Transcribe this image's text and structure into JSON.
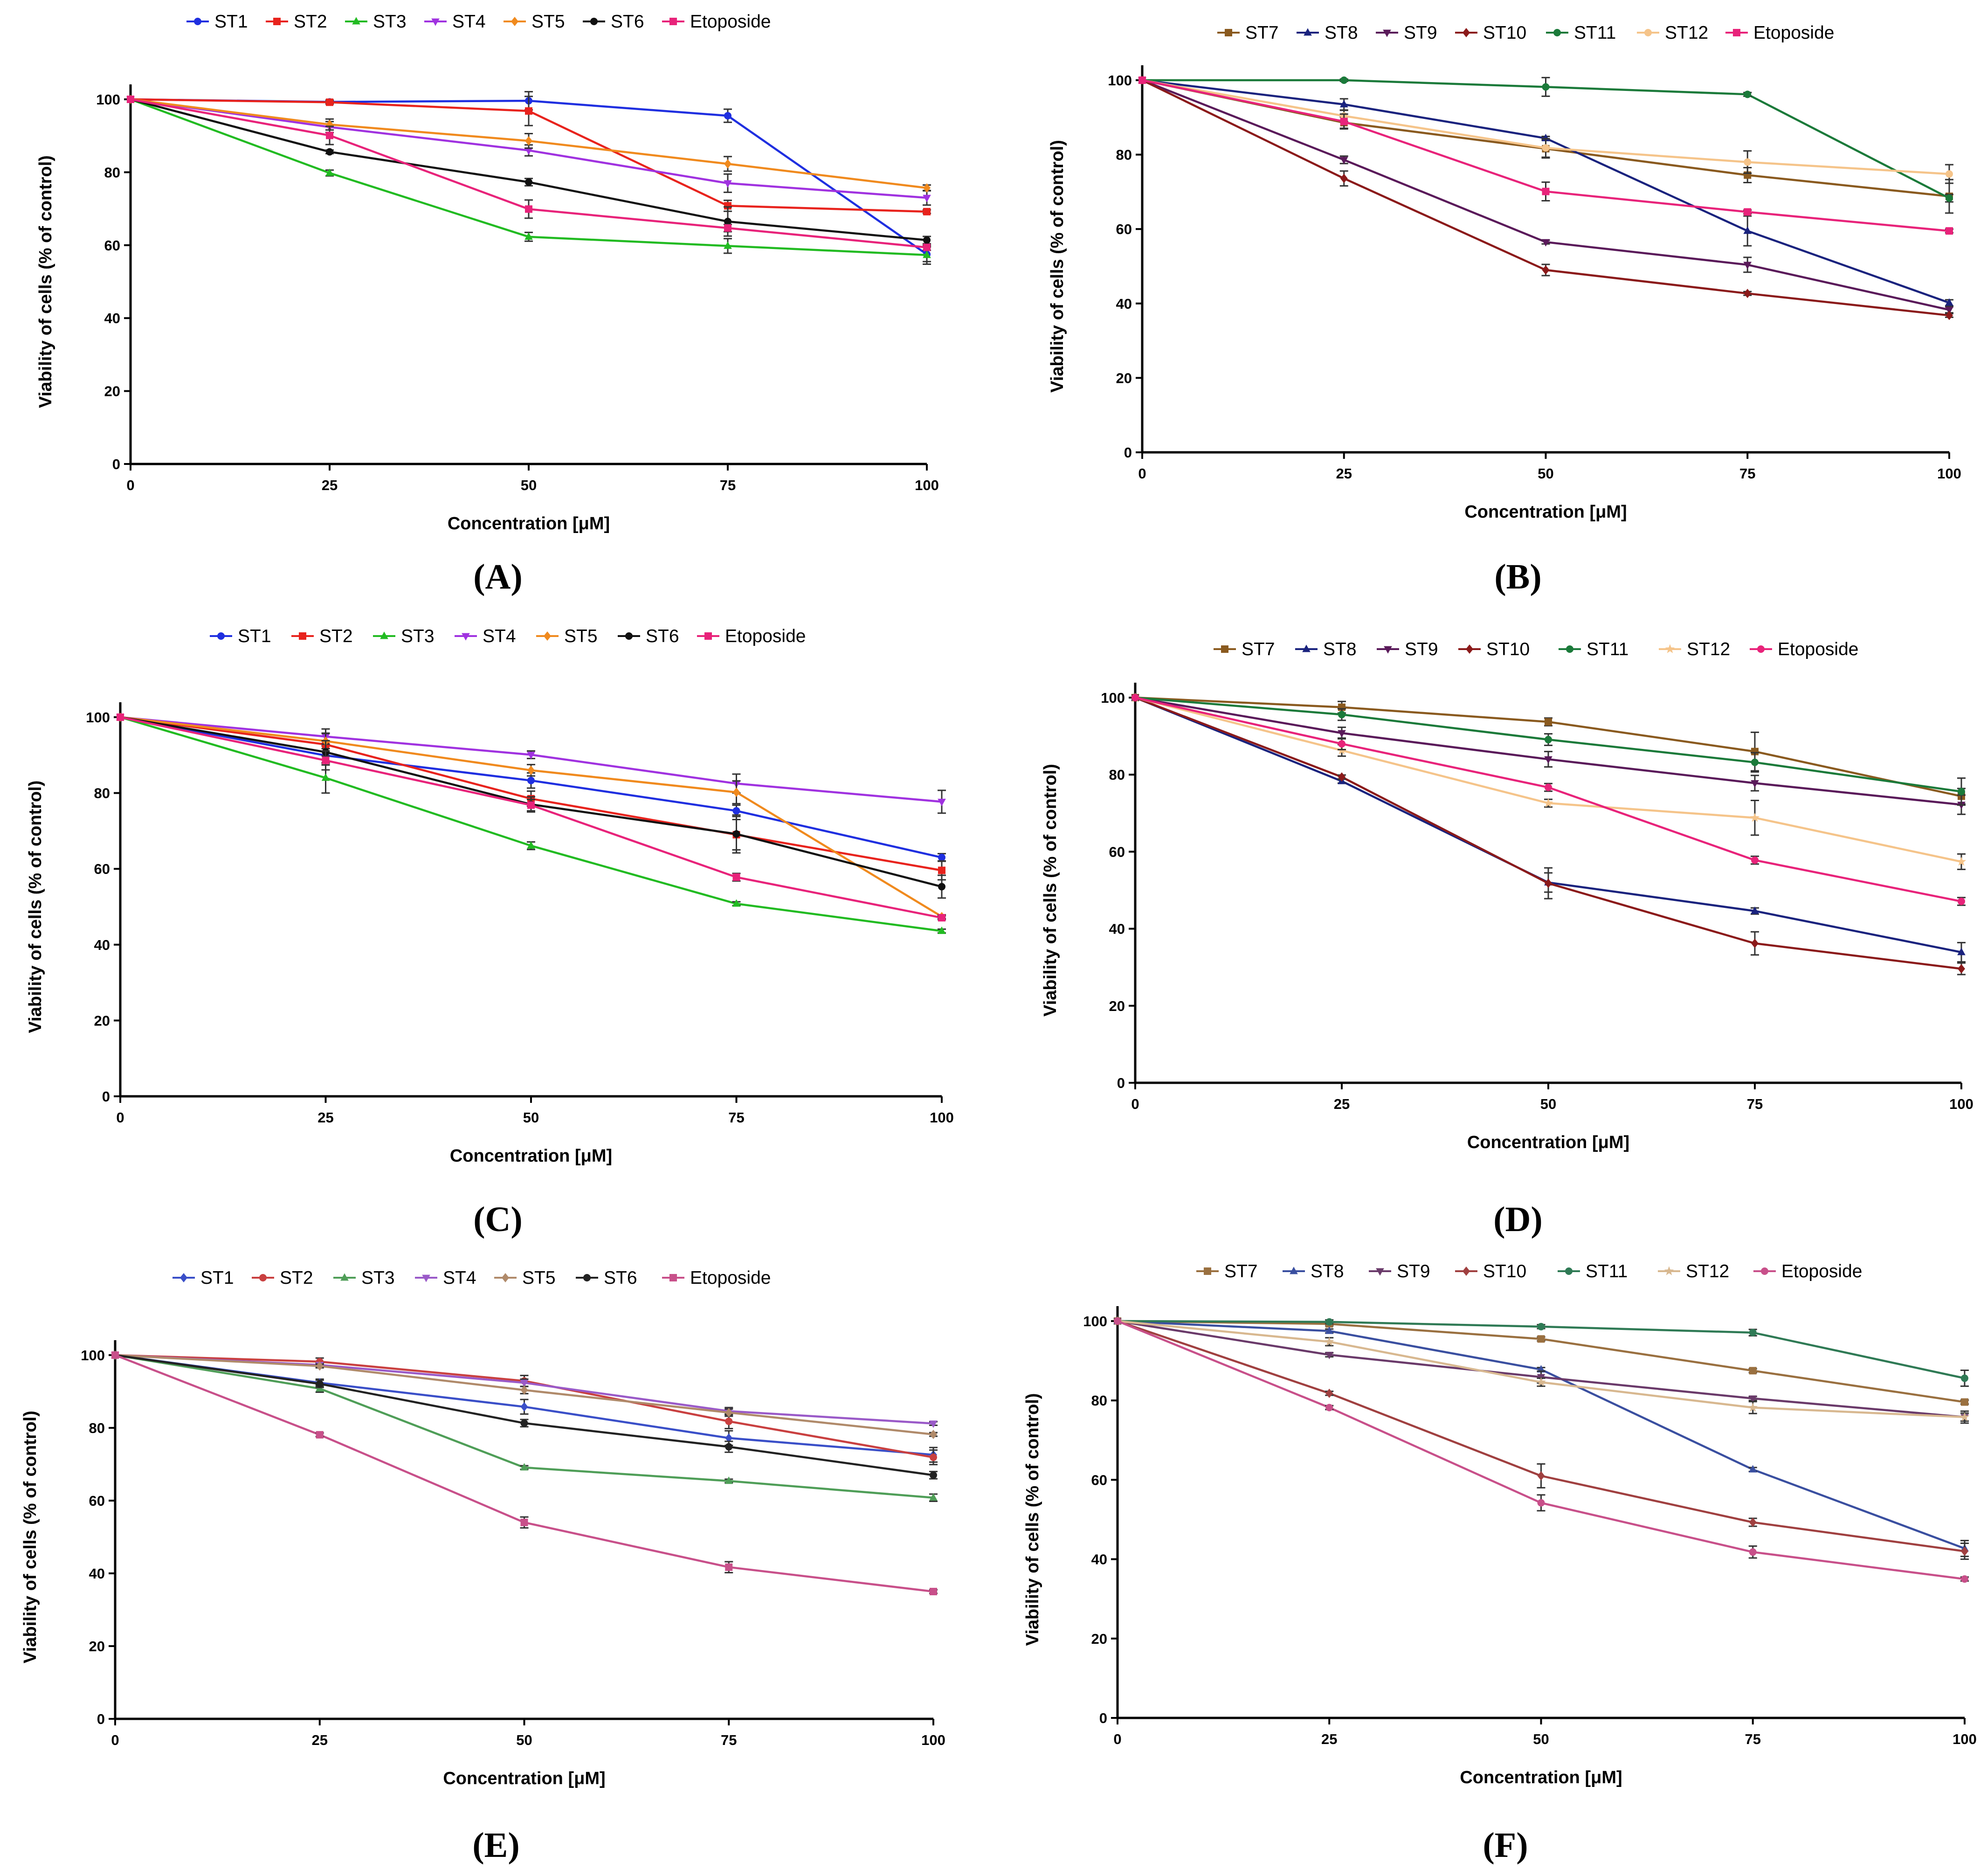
{
  "figure": {
    "panels": [
      "A",
      "B",
      "C",
      "D",
      "E",
      "F"
    ]
  },
  "chart_data": [
    {
      "id": "A",
      "type": "line",
      "panel_label": "(A)",
      "xlabel": "Concentration [μM]",
      "ylabel": "Viability of cells (% of control)",
      "x": [
        0,
        25,
        50,
        75,
        100
      ],
      "xticks": [
        0,
        25,
        50,
        75,
        100
      ],
      "yticks": [
        0,
        20,
        40,
        60,
        80,
        100
      ],
      "xlim": [
        0,
        100
      ],
      "ylim": [
        0,
        100
      ],
      "legend_position": "top",
      "series": [
        {
          "name": "ST1",
          "color": "#1f2fe0",
          "marker": "circle",
          "values": [
            100,
            99.3,
            99.6,
            95.5,
            57.5
          ],
          "errors": [
            0,
            0.5,
            2.5,
            1.8,
            2.0
          ]
        },
        {
          "name": "ST2",
          "color": "#e8231d",
          "marker": "square",
          "values": [
            100,
            99.2,
            96.8,
            70.8,
            69.2
          ],
          "errors": [
            0,
            0.5,
            4.0,
            1.5,
            0.5
          ]
        },
        {
          "name": "ST3",
          "color": "#22bb22",
          "marker": "triangle",
          "values": [
            100,
            79.8,
            62.3,
            59.8,
            57.3
          ],
          "errors": [
            0,
            0.8,
            1.2,
            2.0,
            2.5
          ]
        },
        {
          "name": "ST4",
          "color": "#a032e0",
          "marker": "triangle-down",
          "values": [
            100,
            92.4,
            86.0,
            77.0,
            73.0
          ],
          "errors": [
            0,
            1.5,
            1.5,
            2.5,
            2.0
          ]
        },
        {
          "name": "ST5",
          "color": "#f08a1e",
          "marker": "diamond",
          "values": [
            100,
            93.1,
            88.6,
            82.3,
            75.7
          ],
          "errors": [
            0,
            1.5,
            2.0,
            2.0,
            0.8
          ]
        },
        {
          "name": "ST6",
          "color": "#111111",
          "marker": "circle",
          "values": [
            100,
            85.6,
            77.3,
            66.5,
            61.4
          ],
          "errors": [
            0,
            0.5,
            1.0,
            4.0,
            1.0
          ]
        },
        {
          "name": "Etoposide",
          "color": "#e8237a",
          "marker": "square",
          "values": [
            100,
            90.1,
            69.9,
            64.7,
            59.4
          ],
          "errors": [
            0,
            2.5,
            2.5,
            1.0,
            0.8
          ]
        }
      ]
    },
    {
      "id": "B",
      "type": "line",
      "panel_label": "(B)",
      "xlabel": "Concentration [μM]",
      "ylabel": "Viability of cells (% of control)",
      "x": [
        0,
        25,
        50,
        75,
        100
      ],
      "xticks": [
        0,
        25,
        50,
        75,
        100
      ],
      "yticks": [
        0,
        20,
        40,
        60,
        80,
        100
      ],
      "xlim": [
        0,
        100
      ],
      "ylim": [
        0,
        100
      ],
      "legend_position": "top",
      "series": [
        {
          "name": "ST7",
          "color": "#8a5a1f",
          "marker": "square",
          "values": [
            100,
            88.6,
            81.6,
            74.5,
            68.8
          ],
          "errors": [
            0,
            1.5,
            2.5,
            2.0,
            4.5
          ]
        },
        {
          "name": "ST8",
          "color": "#1a237e",
          "marker": "triangle",
          "values": [
            100,
            93.5,
            84.4,
            59.5,
            40.2
          ],
          "errors": [
            0,
            1.5,
            0.5,
            4.0,
            0.8
          ]
        },
        {
          "name": "ST9",
          "color": "#5a1a5a",
          "marker": "triangle-down",
          "values": [
            100,
            78.6,
            56.5,
            50.4,
            38.3
          ],
          "errors": [
            0,
            1.0,
            0.5,
            2.0,
            0.8
          ]
        },
        {
          "name": "ST10",
          "color": "#8b1a1a",
          "marker": "diamond",
          "values": [
            100,
            73.6,
            49.0,
            42.7,
            36.8
          ],
          "errors": [
            0,
            2.0,
            1.5,
            0.5,
            0.5
          ]
        },
        {
          "name": "ST11",
          "color": "#1b7a3a",
          "marker": "circle",
          "values": [
            100,
            100.0,
            98.2,
            96.2,
            68.3
          ],
          "errors": [
            0,
            0.3,
            2.5,
            0.5,
            1.0
          ]
        },
        {
          "name": "ST12",
          "color": "#f5c48a",
          "marker": "circle",
          "values": [
            100,
            90.4,
            81.8,
            78.0,
            74.8
          ],
          "errors": [
            0,
            1.5,
            2.5,
            3.0,
            2.5
          ]
        },
        {
          "name": "Etoposide",
          "color": "#e8237a",
          "marker": "square",
          "values": [
            100,
            88.9,
            70.1,
            64.6,
            59.5
          ],
          "errors": [
            0,
            2.0,
            2.5,
            0.5,
            0.5
          ]
        }
      ]
    },
    {
      "id": "C",
      "type": "line",
      "panel_label": "(C)",
      "xlabel": "Concentration [μM]",
      "ylabel": "Viability of cells (% of control)",
      "x": [
        0,
        25,
        50,
        75,
        100
      ],
      "xticks": [
        0,
        25,
        50,
        75,
        100
      ],
      "yticks": [
        0,
        20,
        40,
        60,
        80,
        100
      ],
      "xlim": [
        0,
        100
      ],
      "ylim": [
        0,
        100
      ],
      "legend_position": "top",
      "series": [
        {
          "name": "ST1",
          "color": "#1f2fe0",
          "marker": "circle",
          "values": [
            100,
            89.9,
            83.3,
            75.3,
            63.0
          ],
          "errors": [
            0,
            2.5,
            2.0,
            1.5,
            1.0
          ]
        },
        {
          "name": "ST2",
          "color": "#e8231d",
          "marker": "square",
          "values": [
            100,
            92.8,
            78.5,
            69.0,
            59.6
          ],
          "errors": [
            0,
            3.0,
            2.0,
            4.0,
            2.5
          ]
        },
        {
          "name": "ST3",
          "color": "#22bb22",
          "marker": "triangle",
          "values": [
            100,
            84.0,
            66.1,
            50.8,
            43.6
          ],
          "errors": [
            0,
            4.0,
            1.0,
            0.5,
            0.5
          ]
        },
        {
          "name": "ST4",
          "color": "#a032e0",
          "marker": "triangle-down",
          "values": [
            100,
            94.9,
            90.1,
            82.5,
            77.7
          ],
          "errors": [
            0,
            2.0,
            1.0,
            2.5,
            3.0
          ]
        },
        {
          "name": "ST5",
          "color": "#f08a1e",
          "marker": "diamond",
          "values": [
            100,
            93.7,
            86.0,
            80.2,
            47.4
          ],
          "errors": [
            0,
            2.0,
            1.5,
            3.0,
            0.5
          ]
        },
        {
          "name": "ST6",
          "color": "#111111",
          "marker": "circle",
          "values": [
            100,
            90.8,
            77.0,
            69.2,
            55.3
          ],
          "errors": [
            0,
            3.0,
            2.0,
            5.0,
            3.0
          ]
        },
        {
          "name": "Etoposide",
          "color": "#e8237a",
          "marker": "square",
          "values": [
            100,
            88.6,
            76.8,
            57.8,
            47.1
          ],
          "errors": [
            0,
            2.5,
            1.5,
            1.0,
            0.5
          ]
        }
      ]
    },
    {
      "id": "D",
      "type": "line",
      "panel_label": "(D)",
      "xlabel": "Concentration [μM]",
      "ylabel": "Viability of cells (% of control)",
      "x": [
        0,
        25,
        50,
        75,
        100
      ],
      "xticks": [
        0,
        25,
        50,
        75,
        100
      ],
      "yticks": [
        0,
        20,
        40,
        60,
        80,
        100
      ],
      "xlim": [
        0,
        100
      ],
      "ylim": [
        0,
        100
      ],
      "legend_position": "top",
      "series": [
        {
          "name": "ST7",
          "color": "#8a5a1f",
          "marker": "square",
          "values": [
            100,
            97.5,
            93.7,
            86.0,
            74.4
          ],
          "errors": [
            0,
            1.5,
            1.0,
            5.0,
            2.0
          ]
        },
        {
          "name": "ST8",
          "color": "#1a237e",
          "marker": "triangle",
          "values": [
            100,
            78.3,
            52.0,
            44.6,
            33.9
          ],
          "errors": [
            0,
            0.5,
            2.5,
            0.8,
            2.5
          ]
        },
        {
          "name": "ST9",
          "color": "#5a1a5a",
          "marker": "triangle-down",
          "values": [
            100,
            90.8,
            84.0,
            77.8,
            72.2
          ],
          "errors": [
            0,
            1.5,
            2.0,
            2.0,
            2.5
          ]
        },
        {
          "name": "ST10",
          "color": "#8b1a1a",
          "marker": "diamond",
          "values": [
            100,
            79.4,
            51.8,
            36.2,
            29.6
          ],
          "errors": [
            0,
            0.5,
            4.0,
            3.0,
            1.5
          ]
        },
        {
          "name": "ST11",
          "color": "#1b7a3a",
          "marker": "circle",
          "values": [
            100,
            95.6,
            89.1,
            83.2,
            75.6
          ],
          "errors": [
            0,
            1.5,
            1.5,
            2.5,
            3.5
          ]
        },
        {
          "name": "ST12",
          "color": "#f5c48a",
          "marker": "star",
          "values": [
            100,
            86.3,
            72.6,
            68.8,
            57.4
          ],
          "errors": [
            0,
            1.5,
            1.0,
            4.5,
            2.0
          ]
        },
        {
          "name": "Etoposide",
          "color": "#e8237a",
          "marker": "circle",
          "values": [
            100,
            88.0,
            76.7,
            57.8,
            47.1
          ],
          "errors": [
            0,
            1.5,
            1.0,
            1.0,
            1.0
          ]
        }
      ]
    },
    {
      "id": "E",
      "type": "line",
      "panel_label": "(E)",
      "xlabel": "Concentration [μM]",
      "ylabel": "Viability of cells (% of control)",
      "x": [
        0,
        25,
        50,
        75,
        100
      ],
      "xticks": [
        0,
        25,
        50,
        75,
        100
      ],
      "yticks": [
        0,
        20,
        40,
        60,
        80,
        100
      ],
      "xlim": [
        0,
        100
      ],
      "ylim": [
        0,
        100
      ],
      "legend_position": "top",
      "series": [
        {
          "name": "ST1",
          "color": "#3a4fc8",
          "marker": "diamond",
          "values": [
            100,
            92.4,
            85.8,
            77.2,
            72.6
          ],
          "errors": [
            0,
            1.0,
            2.0,
            2.0,
            2.0
          ]
        },
        {
          "name": "ST2",
          "color": "#c94040",
          "marker": "circle",
          "values": [
            100,
            98.2,
            92.9,
            81.8,
            71.9
          ],
          "errors": [
            0,
            1.0,
            1.5,
            2.0,
            2.0
          ]
        },
        {
          "name": "ST3",
          "color": "#4f9e58",
          "marker": "triangle",
          "values": [
            100,
            90.8,
            69.1,
            65.4,
            60.8
          ],
          "errors": [
            0,
            1.0,
            0.5,
            0.5,
            1.0
          ]
        },
        {
          "name": "ST4",
          "color": "#9a5ac8",
          "marker": "triangle-down",
          "values": [
            100,
            97.3,
            92.4,
            84.6,
            81.2
          ],
          "errors": [
            0,
            0.5,
            1.0,
            1.0,
            0.5
          ]
        },
        {
          "name": "ST5",
          "color": "#b08a6a",
          "marker": "diamond",
          "values": [
            100,
            97.0,
            90.4,
            84.2,
            78.2
          ],
          "errors": [
            0,
            0.5,
            1.0,
            1.0,
            0.5
          ]
        },
        {
          "name": "ST6",
          "color": "#222222",
          "marker": "circle",
          "values": [
            100,
            92.1,
            81.3,
            74.8,
            67.0
          ],
          "errors": [
            0,
            1.0,
            1.0,
            1.5,
            1.0
          ]
        },
        {
          "name": "Etoposide",
          "color": "#c8508a",
          "marker": "square",
          "values": [
            100,
            78.1,
            54.0,
            41.7,
            35.0
          ],
          "errors": [
            0,
            0.5,
            1.5,
            1.5,
            0.5
          ]
        }
      ]
    },
    {
      "id": "F",
      "type": "line",
      "panel_label": "(F)",
      "xlabel": "Concentration [μM]",
      "ylabel": "Viability of cells (% of control)",
      "x": [
        0,
        25,
        50,
        75,
        100
      ],
      "xticks": [
        0,
        25,
        50,
        75,
        100
      ],
      "yticks": [
        0,
        20,
        40,
        60,
        80,
        100
      ],
      "xlim": [
        0,
        100
      ],
      "ylim": [
        0,
        100
      ],
      "legend_position": "top",
      "series": [
        {
          "name": "ST7",
          "color": "#9a7040",
          "marker": "square",
          "values": [
            100,
            99.3,
            95.5,
            87.5,
            79.6
          ],
          "errors": [
            0,
            0.5,
            0.5,
            0.5,
            0.5
          ]
        },
        {
          "name": "ST8",
          "color": "#3a4fa0",
          "marker": "triangle",
          "values": [
            100,
            97.5,
            87.8,
            62.6,
            42.7
          ],
          "errors": [
            0,
            0.5,
            0.5,
            0.5,
            2.0
          ]
        },
        {
          "name": "ST9",
          "color": "#6a3a6a",
          "marker": "triangle-down",
          "values": [
            100,
            91.5,
            85.9,
            80.5,
            75.8
          ],
          "errors": [
            0,
            0.5,
            1.5,
            0.5,
            1.5
          ]
        },
        {
          "name": "ST10",
          "color": "#a04040",
          "marker": "diamond",
          "values": [
            100,
            81.8,
            61.0,
            49.3,
            42.0
          ],
          "errors": [
            0,
            0.5,
            3.0,
            1.0,
            2.0
          ]
        },
        {
          "name": "ST11",
          "color": "#2f7a55",
          "marker": "circle",
          "values": [
            100,
            99.8,
            98.6,
            97.1,
            85.6
          ],
          "errors": [
            0,
            0.5,
            0.5,
            0.8,
            2.0
          ]
        },
        {
          "name": "ST12",
          "color": "#d8b890",
          "marker": "star",
          "values": [
            100,
            94.8,
            84.6,
            78.2,
            75.8
          ],
          "errors": [
            0,
            1.0,
            1.0,
            1.5,
            1.0
          ]
        },
        {
          "name": "Etoposide",
          "color": "#c8508a",
          "marker": "circle",
          "values": [
            100,
            78.2,
            54.2,
            41.8,
            35.0
          ],
          "errors": [
            0,
            0.5,
            2.0,
            1.5,
            0.5
          ]
        }
      ]
    }
  ]
}
